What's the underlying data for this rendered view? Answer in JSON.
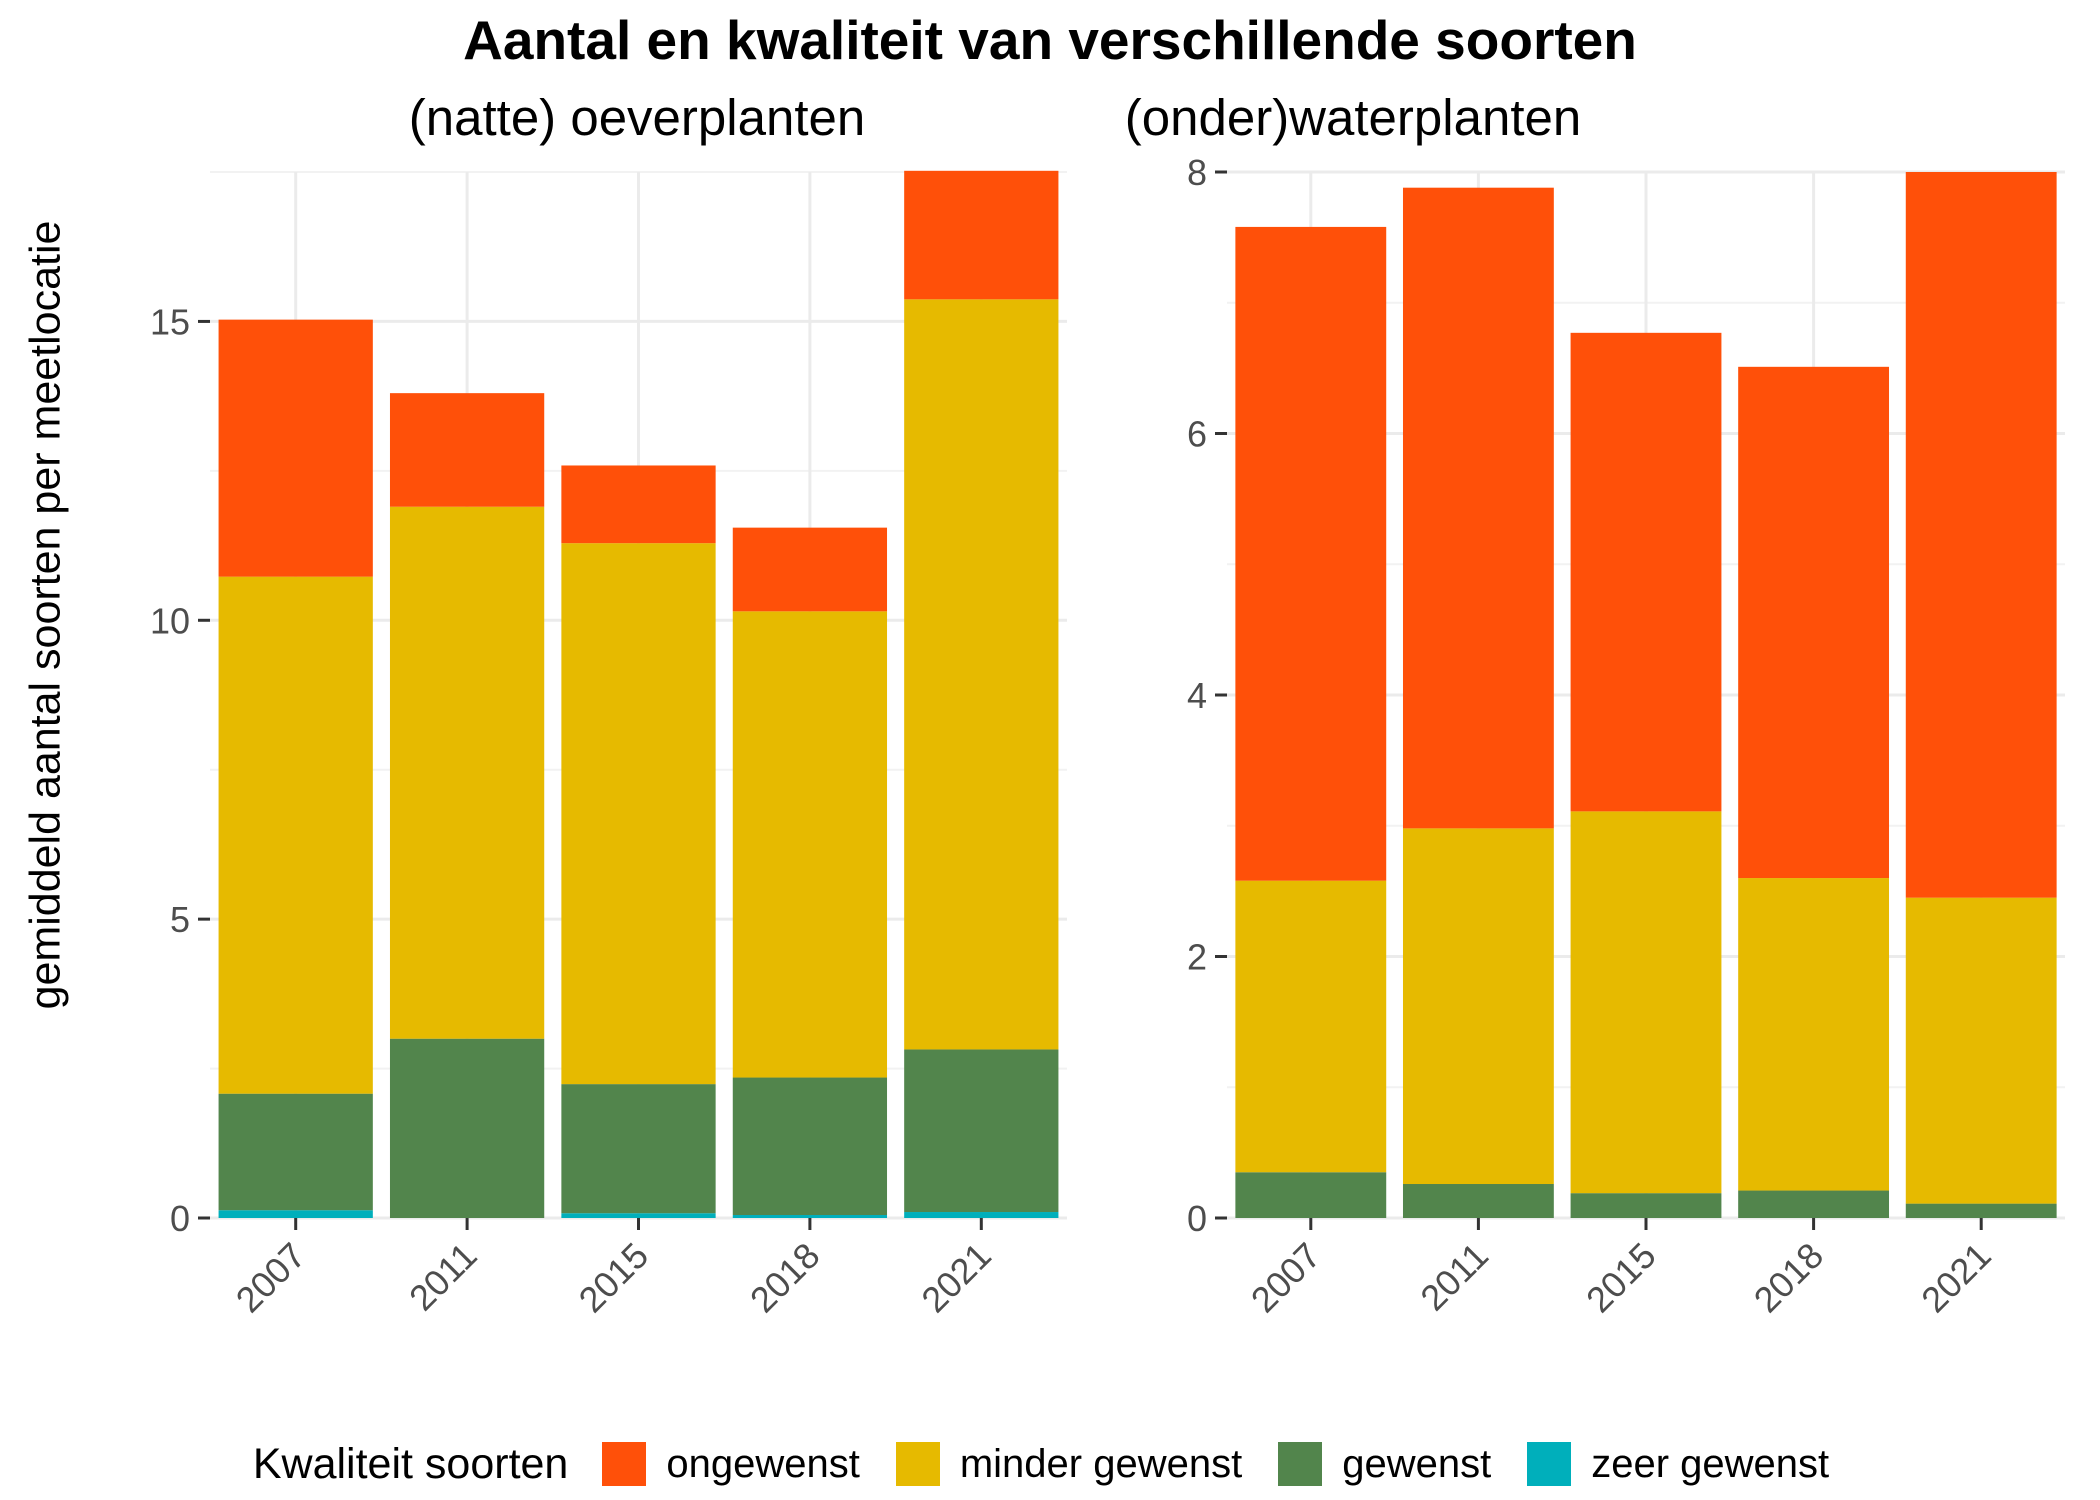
{
  "title": "Aantal en kwaliteit van verschillende soorten",
  "y_axis_title": "gemiddeld aantal soorten per meetlocatie",
  "legend": {
    "title": "Kwaliteit soorten",
    "position": "bottom",
    "items": [
      {
        "label": "ongewenst",
        "color": "#FF5009"
      },
      {
        "label": "minder gewenst",
        "color": "#E6BA00"
      },
      {
        "label": "gewenst",
        "color": "#52854C"
      },
      {
        "label": "zeer gewenst",
        "color": "#00AFBB"
      }
    ]
  },
  "chart_data": [
    {
      "type": "bar",
      "stacked": true,
      "title": "(natte) oeverplanten",
      "categories": [
        "2007",
        "2011",
        "2015",
        "2018",
        "2021"
      ],
      "ylabel": "gemiddeld aantal soorten per meetlocatie",
      "ylim": [
        0,
        17.5
      ],
      "yticks": [
        0,
        5,
        10,
        15
      ],
      "grid": true,
      "series": [
        {
          "name": "zeer gewenst",
          "color": "#00AFBB",
          "values": [
            0.13,
            0.0,
            0.08,
            0.05,
            0.1
          ]
        },
        {
          "name": "gewenst",
          "color": "#52854C",
          "values": [
            1.95,
            3.0,
            2.16,
            2.3,
            2.72
          ]
        },
        {
          "name": "minder gewenst",
          "color": "#E6BA00",
          "values": [
            8.65,
            8.9,
            9.05,
            7.8,
            12.55
          ]
        },
        {
          "name": "ongewenst",
          "color": "#FF5009",
          "values": [
            4.3,
            1.9,
            1.3,
            1.4,
            2.15
          ]
        }
      ]
    },
    {
      "type": "bar",
      "stacked": true,
      "title": "(onder)waterplanten",
      "categories": [
        "2007",
        "2011",
        "2015",
        "2018",
        "2021"
      ],
      "ylabel": "gemiddeld aantal soorten per meetlocatie",
      "ylim": [
        0,
        8
      ],
      "yticks": [
        0,
        2,
        4,
        6,
        8
      ],
      "grid": true,
      "series": [
        {
          "name": "zeer gewenst",
          "color": "#00AFBB",
          "values": [
            0.0,
            0.0,
            0.0,
            0.0,
            0.0
          ]
        },
        {
          "name": "gewenst",
          "color": "#52854C",
          "values": [
            0.35,
            0.26,
            0.19,
            0.21,
            0.11
          ]
        },
        {
          "name": "minder gewenst",
          "color": "#E6BA00",
          "values": [
            2.23,
            2.72,
            2.92,
            2.39,
            2.34
          ]
        },
        {
          "name": "ongewenst",
          "color": "#FF5009",
          "values": [
            5.0,
            4.9,
            3.66,
            3.91,
            5.55
          ]
        }
      ]
    }
  ]
}
